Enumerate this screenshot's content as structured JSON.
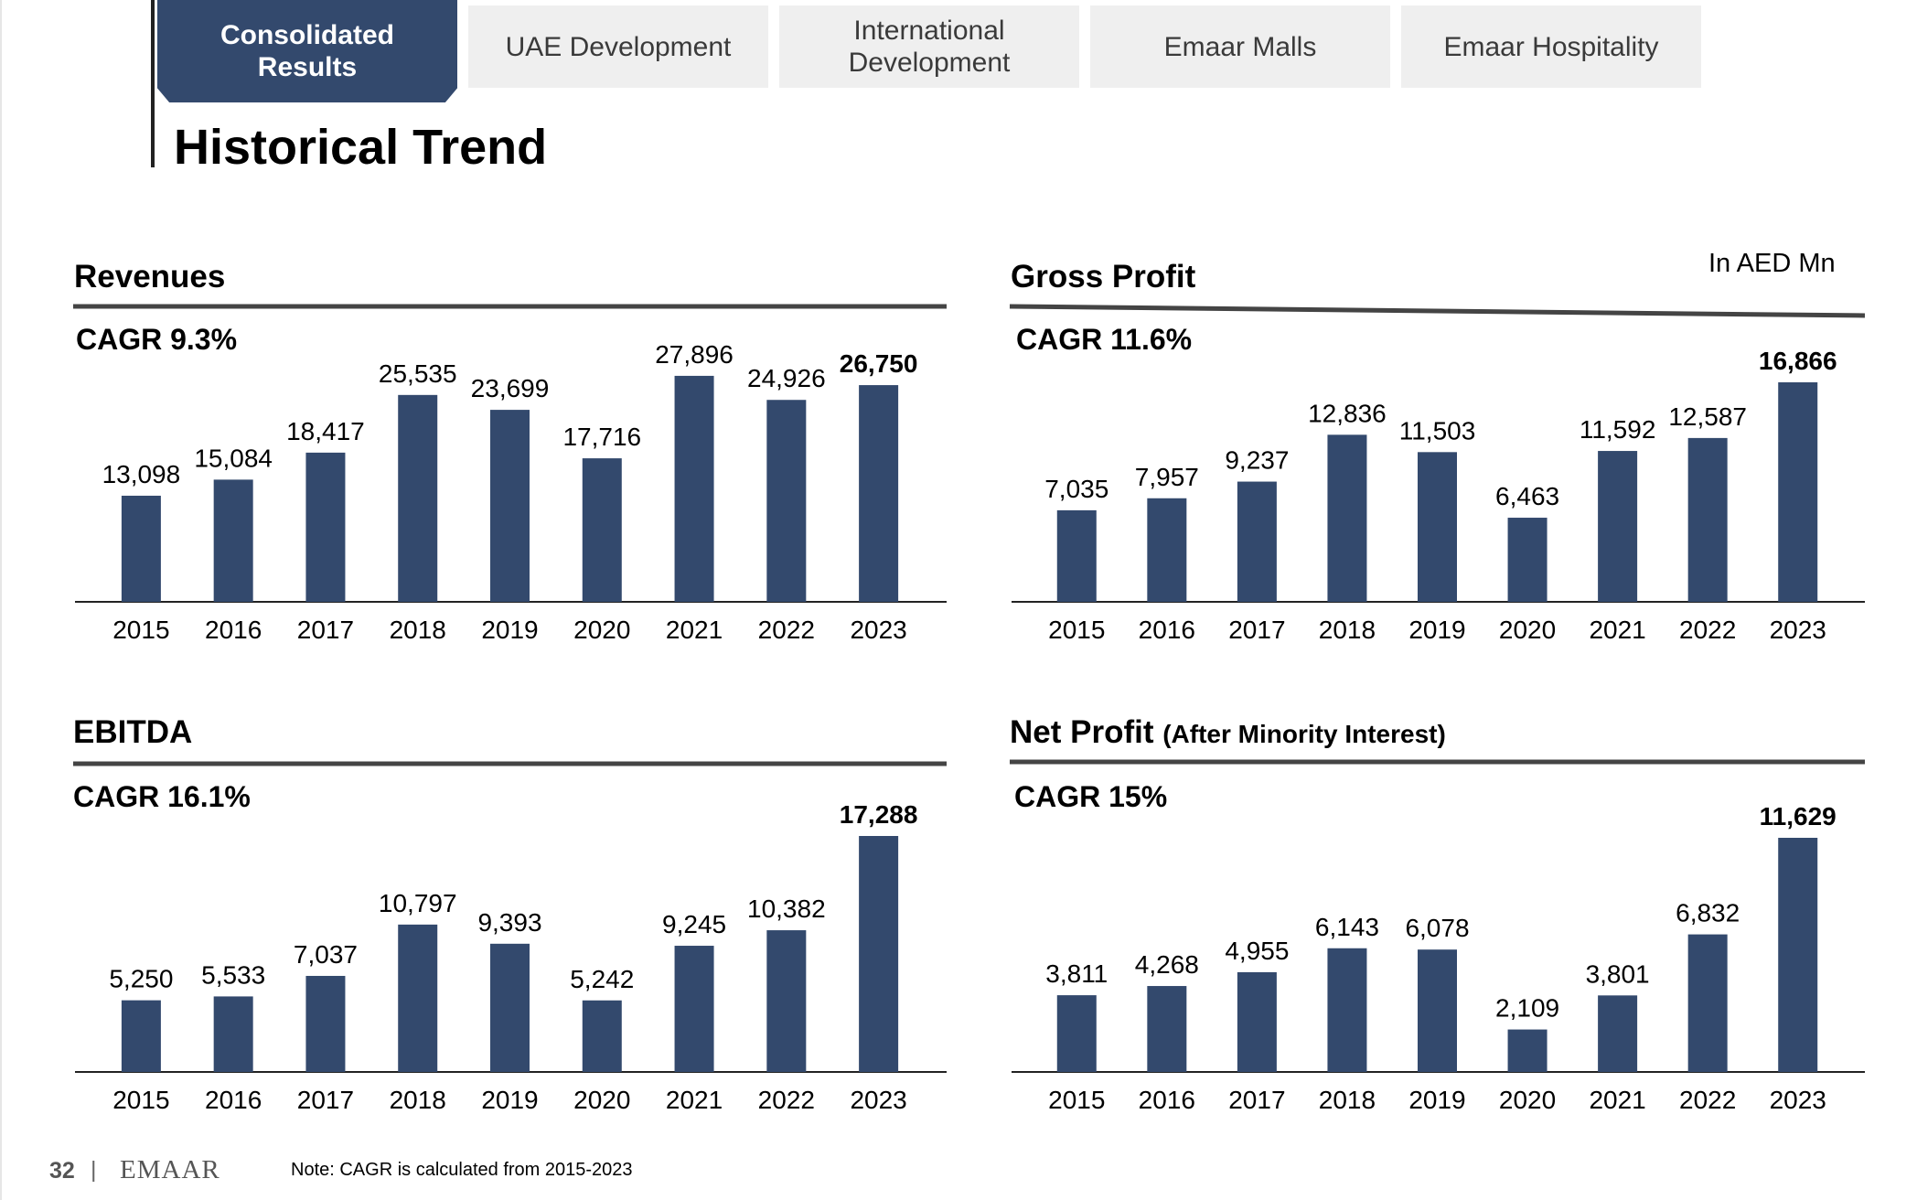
{
  "tabs": [
    {
      "label": "Consolidated\nResults",
      "active": true
    },
    {
      "label": "UAE Development",
      "active": false
    },
    {
      "label": "International\nDevelopment",
      "active": false
    },
    {
      "label": "Emaar Malls",
      "active": false
    },
    {
      "label": "Emaar Hospitality",
      "active": false
    }
  ],
  "page_title": "Historical Trend",
  "unit_note": "In AED Mn",
  "footer": {
    "page_number": "32",
    "separator": "|",
    "brand": "EMAAR",
    "note": "Note: CAGR is calculated from 2015-2023"
  },
  "colors": {
    "bar": "#33496d",
    "active_tab": "#33496d",
    "inactive_tab": "#efefef"
  },
  "chart_data": [
    {
      "type": "bar",
      "title": "Revenues",
      "subtitle": "",
      "cagr": "CAGR 9.3%",
      "categories": [
        "2015",
        "2016",
        "2017",
        "2018",
        "2019",
        "2020",
        "2021",
        "2022",
        "2023"
      ],
      "values": [
        13098,
        15084,
        18417,
        25535,
        23699,
        17716,
        27896,
        24926,
        26750
      ],
      "labels": [
        "13,098",
        "15,084",
        "18,417",
        "25,535",
        "23,699",
        "17,716",
        "27,896",
        "24,926",
        "26,750"
      ],
      "bold_last": true,
      "grid": false
    },
    {
      "type": "bar",
      "title": "Gross Profit",
      "subtitle": "",
      "cagr": "CAGR 11.6%",
      "categories": [
        "2015",
        "2016",
        "2017",
        "2018",
        "2019",
        "2020",
        "2021",
        "2022",
        "2023"
      ],
      "values": [
        7035,
        7957,
        9237,
        12836,
        11503,
        6463,
        11592,
        12587,
        16866
      ],
      "labels": [
        "7,035",
        "7,957",
        "9,237",
        "12,836",
        "11,503",
        "6,463",
        "11,592",
        "12,587",
        "16,866"
      ],
      "bold_last": true,
      "grid": false
    },
    {
      "type": "bar",
      "title": "EBITDA",
      "subtitle": "",
      "cagr": "CAGR 16.1%",
      "categories": [
        "2015",
        "2016",
        "2017",
        "2018",
        "2019",
        "2020",
        "2021",
        "2022",
        "2023"
      ],
      "values": [
        5250,
        5533,
        7037,
        10797,
        9393,
        5242,
        9245,
        10382,
        17288
      ],
      "labels": [
        "5,250",
        "5,533",
        "7,037",
        "10,797",
        "9,393",
        "5,242",
        "9,245",
        "10,382",
        "17,288"
      ],
      "bold_last": true,
      "grid": false
    },
    {
      "type": "bar",
      "title": "Net Profit",
      "subtitle": "(After Minority Interest)",
      "cagr": "CAGR 15%",
      "categories": [
        "2015",
        "2016",
        "2017",
        "2018",
        "2019",
        "2020",
        "2021",
        "2022",
        "2023"
      ],
      "values": [
        3811,
        4268,
        4955,
        6143,
        6078,
        2109,
        3801,
        6832,
        11629
      ],
      "labels": [
        "3,811",
        "4,268",
        "4,955",
        "6,143",
        "6,078",
        "2,109",
        "3,801",
        "6,832",
        "11,629"
      ],
      "bold_last": true,
      "grid": false
    }
  ]
}
